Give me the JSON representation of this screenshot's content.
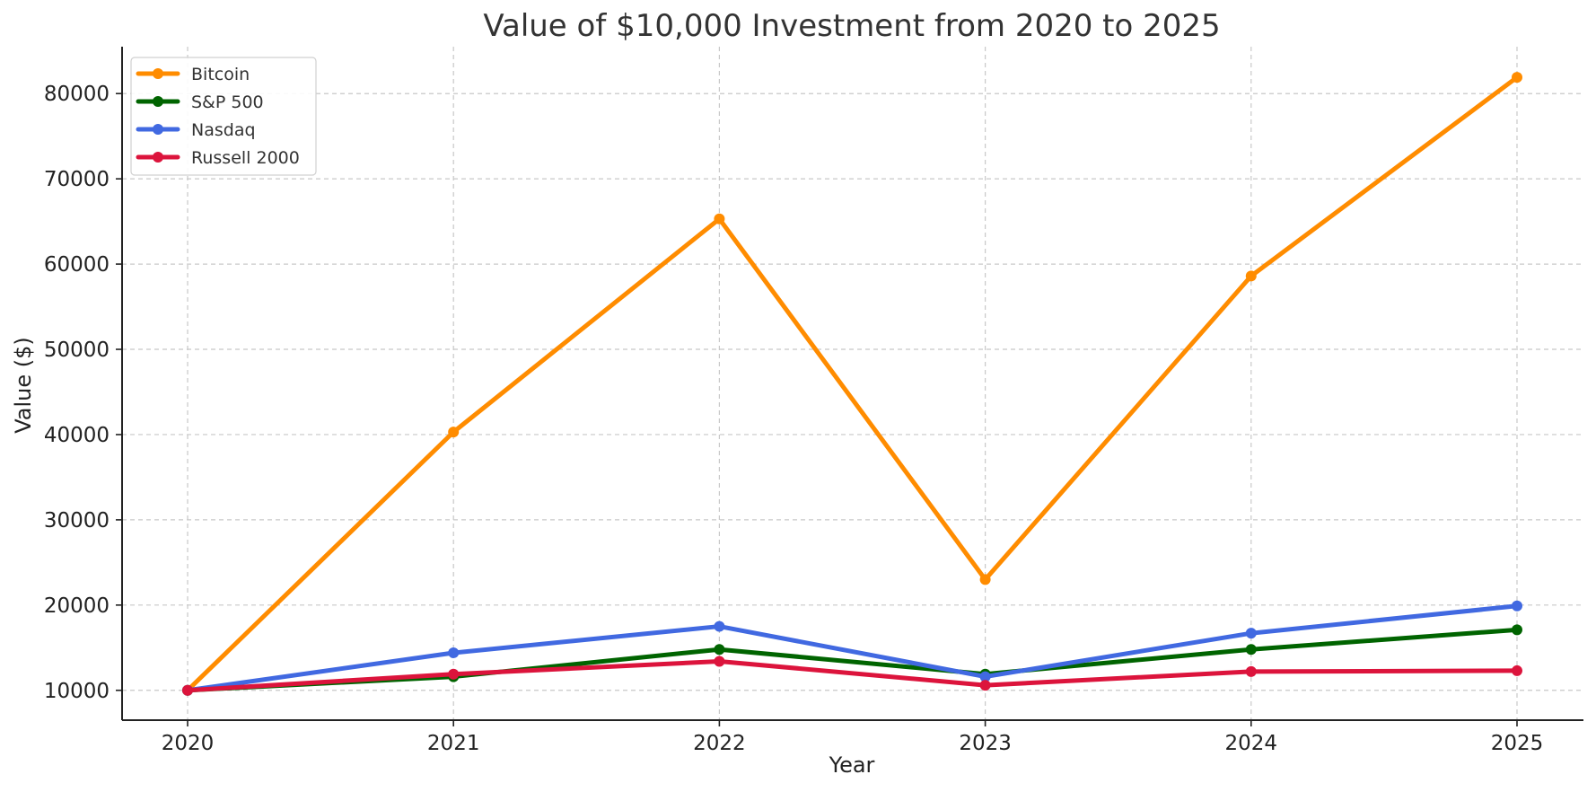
{
  "chart_data": {
    "type": "line",
    "title": "Value of $10,000 Investment from 2020 to 2025",
    "xlabel": "Year",
    "ylabel": "Value ($)",
    "x": [
      "2020",
      "2021",
      "2022",
      "2023",
      "2024",
      "2025"
    ],
    "yticks": [
      10000,
      20000,
      30000,
      40000,
      50000,
      60000,
      70000,
      80000
    ],
    "ylim": [
      6500,
      85500
    ],
    "grid": true,
    "legend_position": "top-left",
    "series": [
      {
        "name": "Bitcoin",
        "color": "#ff8c00",
        "values": [
          10000,
          40300,
          65300,
          23000,
          58600,
          81900
        ]
      },
      {
        "name": "S&P 500",
        "color": "#006400",
        "values": [
          10000,
          11600,
          14800,
          11900,
          14800,
          17100
        ]
      },
      {
        "name": "Nasdaq",
        "color": "#4169e1",
        "values": [
          10000,
          14400,
          17500,
          11600,
          16700,
          19900
        ]
      },
      {
        "name": "Russell 2000",
        "color": "#dc143c",
        "values": [
          10000,
          11900,
          13400,
          10600,
          12200,
          12300
        ]
      }
    ]
  }
}
